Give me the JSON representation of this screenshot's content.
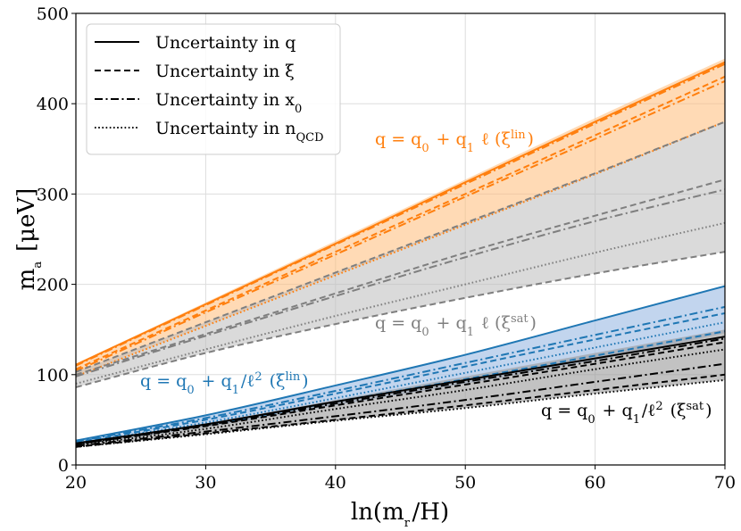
{
  "chart_data": {
    "type": "line",
    "title": "",
    "xlabel": "ln(m_r/H)",
    "ylabel": "m_a [μeV]",
    "xlim": [
      20,
      70
    ],
    "ylim": [
      0,
      500
    ],
    "x_ticks": [
      "20",
      "30",
      "40",
      "50",
      "60",
      "70"
    ],
    "y_ticks": [
      "0",
      "100",
      "200",
      "300",
      "400",
      "500"
    ],
    "grid": true,
    "x_sample": [
      20,
      30,
      40,
      50,
      60,
      70
    ],
    "legend": {
      "position": "top-left",
      "entries": [
        {
          "label": "Uncertainty in q",
          "linestyle": "solid"
        },
        {
          "label": "Uncertainty in ξ",
          "linestyle": "dashed"
        },
        {
          "label": "Uncertainty in x_0",
          "linestyle": "dashdot"
        },
        {
          "label": "Uncertainty in n_QCD",
          "linestyle": "dotted"
        }
      ]
    },
    "bands": [
      {
        "name": "q = q_0 + q_1 ℓ (ξ^lin)",
        "color": "#ff7f0e",
        "fill": "#ffbb78",
        "fill_opacity": 0.55,
        "upper": [
          112,
          180,
          248,
          316,
          384,
          450
        ],
        "lower": [
          98,
          154,
          210,
          266,
          322,
          380
        ],
        "curves": [
          {
            "style": "solid",
            "y": [
              111,
              178,
              245,
              313,
              380,
              446
            ]
          },
          {
            "style": "dashdot",
            "y": [
              110,
              177,
              244,
              311,
              378,
              444
            ]
          },
          {
            "style": "dashed",
            "y": [
              106,
              171,
              236,
              300,
              365,
              430
            ]
          },
          {
            "style": "dashdot",
            "y": [
              104,
              169,
              233,
              297,
              361,
              425
            ]
          },
          {
            "style": "dotted",
            "y": [
              98,
              154,
              210,
              266,
              322,
              380
            ]
          }
        ]
      },
      {
        "name": "q = q_0 + q_1 ℓ (ξ^sat)",
        "color": "#7f7f7f",
        "fill": "#bbbbbb",
        "fill_opacity": 0.55,
        "upper": [
          103,
          158,
          213,
          268,
          323,
          380
        ],
        "lower": [
          86,
          124,
          156,
          185,
          212,
          236
        ],
        "curves": [
          {
            "style": "dashed",
            "y": [
              103,
              158,
              213,
              268,
              323,
              380
            ]
          },
          {
            "style": "dashed",
            "y": [
              100,
              145,
              190,
              235,
              276,
              316
            ]
          },
          {
            "style": "dashdot",
            "y": [
              98,
              143,
              187,
              230,
              270,
              305
            ]
          },
          {
            "style": "dotted",
            "y": [
              90,
              128,
              165,
              200,
              235,
              268
            ]
          },
          {
            "style": "dashed",
            "y": [
              86,
              124,
              156,
              185,
              212,
              236
            ]
          }
        ]
      },
      {
        "name": "q = q_0 + q_1/ℓ^2 (ξ^lin)",
        "color": "#1f77b4",
        "fill": "#aec7e8",
        "fill_opacity": 0.75,
        "upper": [
          27,
          55,
          88,
          122,
          160,
          198
        ],
        "lower": [
          22,
          42,
          66,
          90,
          116,
          146
        ],
        "curves": [
          {
            "style": "solid",
            "y": [
              27,
              55,
              88,
              122,
              160,
              198
            ]
          },
          {
            "style": "dashdot",
            "y": [
              26,
              52,
              82,
              113,
              144,
              175
            ]
          },
          {
            "style": "dashed",
            "y": [
              25,
              50,
              79,
              109,
              139,
              168
            ]
          },
          {
            "style": "dotted",
            "y": [
              24,
              47,
              74,
              102,
              130,
              158
            ]
          },
          {
            "style": "dashed",
            "y": [
              23,
              44,
              70,
              95,
              121,
              148
            ]
          }
        ]
      },
      {
        "name": "q = q_0 + q_1/ℓ^2 (ξ^sat)",
        "color": "#000000",
        "fill": "#999999",
        "fill_opacity": 0.6,
        "upper": [
          24,
          46,
          72,
          98,
          124,
          150
        ],
        "lower": [
          20,
          34,
          49,
          63,
          79,
          94
        ],
        "curves": [
          {
            "style": "solid",
            "y": [
              24,
              45,
              70,
              94,
              118,
              142
            ]
          },
          {
            "style": "dashdot",
            "y": [
              23,
              44,
              68,
              92,
              115,
              140
            ]
          },
          {
            "style": "dashed",
            "y": [
              23,
              43,
              66,
              89,
              112,
              136
            ]
          },
          {
            "style": "dotted",
            "y": [
              22,
              40,
              62,
              83,
              106,
              128
            ]
          },
          {
            "style": "dashdot",
            "y": [
              21,
              37,
              54,
              72,
              92,
              112
            ]
          },
          {
            "style": "dashed",
            "y": [
              20,
              35,
              50,
              66,
              83,
              100
            ]
          },
          {
            "style": "dotted",
            "y": [
              20,
              34,
              49,
              63,
              79,
              94
            ]
          }
        ]
      }
    ],
    "annotations": [
      {
        "text": "q = q_0 + q_1 ℓ (ξ^lin)",
        "color": "#ff7f0e"
      },
      {
        "text": "q = q_0 + q_1 ℓ (ξ^sat)",
        "color": "#7f7f7f"
      },
      {
        "text": "q = q_0 + q_1/ℓ^2 (ξ^lin)",
        "color": "#1f77b4"
      },
      {
        "text": "q = q_0 + q_1/ℓ^2 (ξ^sat)",
        "color": "#000000"
      }
    ]
  }
}
